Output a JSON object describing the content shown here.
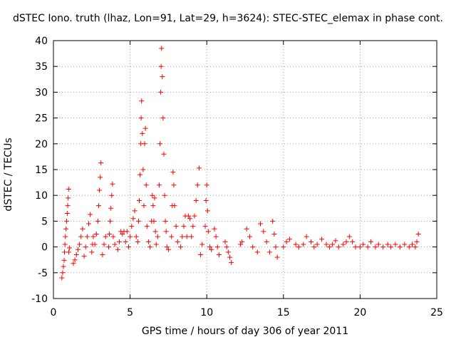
{
  "chart_data": {
    "type": "scatter",
    "title": "dSTEC Iono. truth (lhaz, Lon=91, Lat=29, h=3624): STEC-STEC_elemax in phase cont.",
    "xlabel": "GPS time / hours of day 306 of year 2011",
    "ylabel": "dSTEC  / TECUs",
    "xlim": [
      0,
      25
    ],
    "ylim": [
      -10,
      40
    ],
    "xticks": [
      0,
      5,
      10,
      15,
      20,
      25
    ],
    "yticks": [
      -10,
      -5,
      0,
      5,
      10,
      15,
      20,
      25,
      30,
      35,
      40
    ],
    "grid": true,
    "marker": "+",
    "color": "#ff0000",
    "series": [
      {
        "values": [
          {
            "x": 0.55,
            "y": -6.0
          },
          {
            "x": 0.6,
            "y": -5.0
          },
          {
            "x": 0.65,
            "y": -3.8
          },
          {
            "x": 0.7,
            "y": -2.6
          },
          {
            "x": 0.72,
            "y": -1.0
          },
          {
            "x": 0.75,
            "y": 0.5
          },
          {
            "x": 0.78,
            "y": 2.0
          },
          {
            "x": 0.82,
            "y": 3.5
          },
          {
            "x": 0.86,
            "y": 5.0
          },
          {
            "x": 0.9,
            "y": 6.5
          },
          {
            "x": 0.93,
            "y": 8.0
          },
          {
            "x": 0.96,
            "y": 9.5
          },
          {
            "x": 0.99,
            "y": 11.2
          },
          {
            "x": 1.0,
            "y": -1.0
          },
          {
            "x": 1.05,
            "y": -0.2
          },
          {
            "x": 1.3,
            "y": -3.2
          },
          {
            "x": 1.4,
            "y": -2.5
          },
          {
            "x": 1.5,
            "y": -1.5
          },
          {
            "x": 1.6,
            "y": -0.5
          },
          {
            "x": 1.7,
            "y": 0.5
          },
          {
            "x": 1.8,
            "y": 2.0
          },
          {
            "x": 1.9,
            "y": 3.5
          },
          {
            "x": 2.0,
            "y": -1.8
          },
          {
            "x": 2.1,
            "y": 0.0
          },
          {
            "x": 2.2,
            "y": 2.0
          },
          {
            "x": 2.3,
            "y": 4.5
          },
          {
            "x": 2.4,
            "y": 6.3
          },
          {
            "x": 2.5,
            "y": -1.0
          },
          {
            "x": 2.55,
            "y": 0.5
          },
          {
            "x": 2.6,
            "y": 2.0
          },
          {
            "x": 2.7,
            "y": 0.5
          },
          {
            "x": 2.8,
            "y": 2.5
          },
          {
            "x": 2.9,
            "y": 5.0
          },
          {
            "x": 2.95,
            "y": 8.0
          },
          {
            "x": 3.0,
            "y": 11.0
          },
          {
            "x": 3.05,
            "y": 13.5
          },
          {
            "x": 3.1,
            "y": 16.3
          },
          {
            "x": 3.2,
            "y": -1.5
          },
          {
            "x": 3.3,
            "y": 0.5
          },
          {
            "x": 3.4,
            "y": 2.0
          },
          {
            "x": 3.6,
            "y": 0.0
          },
          {
            "x": 3.65,
            "y": 2.5
          },
          {
            "x": 3.7,
            "y": 5.0
          },
          {
            "x": 3.75,
            "y": 7.5
          },
          {
            "x": 3.8,
            "y": 10.0
          },
          {
            "x": 3.85,
            "y": 12.2
          },
          {
            "x": 3.9,
            "y": 2.0
          },
          {
            "x": 4.0,
            "y": 0.5
          },
          {
            "x": 4.2,
            "y": -0.5
          },
          {
            "x": 4.3,
            "y": 1.0
          },
          {
            "x": 4.4,
            "y": 3.0
          },
          {
            "x": 4.5,
            "y": 2.5
          },
          {
            "x": 4.6,
            "y": 3.0
          },
          {
            "x": 4.7,
            "y": 1.0
          },
          {
            "x": 4.8,
            "y": 3.0
          },
          {
            "x": 4.9,
            "y": 0.0
          },
          {
            "x": 5.0,
            "y": 2.0
          },
          {
            "x": 5.1,
            "y": 4.0
          },
          {
            "x": 5.2,
            "y": 5.5
          },
          {
            "x": 5.3,
            "y": 7.0
          },
          {
            "x": 5.4,
            "y": 2.0
          },
          {
            "x": 5.5,
            "y": 1.0
          },
          {
            "x": 5.55,
            "y": 5.0
          },
          {
            "x": 5.6,
            "y": 9.0
          },
          {
            "x": 5.65,
            "y": 14.0
          },
          {
            "x": 5.7,
            "y": 20.0
          },
          {
            "x": 5.72,
            "y": 25.0
          },
          {
            "x": 5.75,
            "y": 28.3
          },
          {
            "x": 5.8,
            "y": 22.0
          },
          {
            "x": 5.85,
            "y": 15.0
          },
          {
            "x": 5.9,
            "y": 8.0
          },
          {
            "x": 5.95,
            "y": 20.0
          },
          {
            "x": 6.0,
            "y": 23.0
          },
          {
            "x": 6.05,
            "y": 12.0
          },
          {
            "x": 6.1,
            "y": 4.0
          },
          {
            "x": 6.2,
            "y": 1.0
          },
          {
            "x": 6.3,
            "y": 0.0
          },
          {
            "x": 6.4,
            "y": 5.0
          },
          {
            "x": 6.45,
            "y": 10.0
          },
          {
            "x": 6.5,
            "y": 8.0
          },
          {
            "x": 6.55,
            "y": 5.0
          },
          {
            "x": 6.6,
            "y": 9.5
          },
          {
            "x": 6.65,
            "y": 3.0
          },
          {
            "x": 6.7,
            "y": 0.5
          },
          {
            "x": 6.8,
            "y": 2.0
          },
          {
            "x": 6.9,
            "y": 12.0
          },
          {
            "x": 6.95,
            "y": 20.0
          },
          {
            "x": 7.0,
            "y": 30.0
          },
          {
            "x": 7.02,
            "y": 35.0
          },
          {
            "x": 7.05,
            "y": 38.5
          },
          {
            "x": 7.1,
            "y": 33.0
          },
          {
            "x": 7.15,
            "y": 25.0
          },
          {
            "x": 7.2,
            "y": 18.0
          },
          {
            "x": 7.25,
            "y": 10.0
          },
          {
            "x": 7.3,
            "y": 5.0
          },
          {
            "x": 7.35,
            "y": 3.0
          },
          {
            "x": 7.4,
            "y": 0.0
          },
          {
            "x": 7.5,
            "y": -0.5
          },
          {
            "x": 7.7,
            "y": 2.0
          },
          {
            "x": 7.75,
            "y": 8.0
          },
          {
            "x": 7.8,
            "y": 14.5
          },
          {
            "x": 7.85,
            "y": 12.0
          },
          {
            "x": 7.9,
            "y": 8.0
          },
          {
            "x": 8.0,
            "y": 4.0
          },
          {
            "x": 8.1,
            "y": 1.0
          },
          {
            "x": 8.3,
            "y": 0.0
          },
          {
            "x": 8.4,
            "y": 2.0
          },
          {
            "x": 8.5,
            "y": 4.0
          },
          {
            "x": 8.6,
            "y": 6.0
          },
          {
            "x": 8.7,
            "y": 2.0
          },
          {
            "x": 8.8,
            "y": 6.0
          },
          {
            "x": 8.9,
            "y": 5.5
          },
          {
            "x": 9.0,
            "y": 2.0
          },
          {
            "x": 9.1,
            "y": 4.0
          },
          {
            "x": 9.2,
            "y": 6.0
          },
          {
            "x": 9.3,
            "y": 9.0
          },
          {
            "x": 9.4,
            "y": 12.0
          },
          {
            "x": 9.5,
            "y": 15.3
          },
          {
            "x": 9.6,
            "y": -1.5
          },
          {
            "x": 9.7,
            "y": 0.5
          },
          {
            "x": 9.9,
            "y": 4.0
          },
          {
            "x": 9.95,
            "y": 9.0
          },
          {
            "x": 10.0,
            "y": 12.0
          },
          {
            "x": 10.05,
            "y": 7.0
          },
          {
            "x": 10.1,
            "y": 3.0
          },
          {
            "x": 10.2,
            "y": 0.0
          },
          {
            "x": 10.3,
            "y": -0.5
          },
          {
            "x": 10.5,
            "y": 3.5
          },
          {
            "x": 10.6,
            "y": 2.0
          },
          {
            "x": 10.7,
            "y": 0.0
          },
          {
            "x": 10.8,
            "y": -1.5
          },
          {
            "x": 11.2,
            "y": 1.0
          },
          {
            "x": 11.3,
            "y": 0.0
          },
          {
            "x": 11.4,
            "y": -1.0
          },
          {
            "x": 11.5,
            "y": -2.0
          },
          {
            "x": 11.6,
            "y": -3.0
          },
          {
            "x": 12.2,
            "y": 0.5
          },
          {
            "x": 12.3,
            "y": 1.0
          },
          {
            "x": 12.6,
            "y": 3.5
          },
          {
            "x": 12.8,
            "y": 2.0
          },
          {
            "x": 13.0,
            "y": 0.0
          },
          {
            "x": 13.3,
            "y": -1.0
          },
          {
            "x": 13.5,
            "y": 4.5
          },
          {
            "x": 13.7,
            "y": 3.0
          },
          {
            "x": 13.9,
            "y": 1.0
          },
          {
            "x": 14.1,
            "y": -1.0
          },
          {
            "x": 14.3,
            "y": 5.0
          },
          {
            "x": 14.4,
            "y": 2.5
          },
          {
            "x": 14.5,
            "y": 0.0
          },
          {
            "x": 14.6,
            "y": -2.0
          },
          {
            "x": 15.0,
            "y": 0.0
          },
          {
            "x": 15.2,
            "y": 1.0
          },
          {
            "x": 15.4,
            "y": 1.5
          },
          {
            "x": 15.8,
            "y": 0.5
          },
          {
            "x": 16.0,
            "y": 0.0
          },
          {
            "x": 16.3,
            "y": 0.5
          },
          {
            "x": 16.5,
            "y": 2.0
          },
          {
            "x": 16.8,
            "y": 1.0
          },
          {
            "x": 17.0,
            "y": 0.0
          },
          {
            "x": 17.2,
            "y": 0.5
          },
          {
            "x": 17.5,
            "y": 1.5
          },
          {
            "x": 17.8,
            "y": 0.5
          },
          {
            "x": 18.0,
            "y": 0.0
          },
          {
            "x": 18.2,
            "y": 0.5
          },
          {
            "x": 18.4,
            "y": 1.2
          },
          {
            "x": 18.6,
            "y": 0.0
          },
          {
            "x": 18.9,
            "y": 0.5
          },
          {
            "x": 19.1,
            "y": 1.0
          },
          {
            "x": 19.3,
            "y": 2.0
          },
          {
            "x": 19.5,
            "y": 1.0
          },
          {
            "x": 19.7,
            "y": 0.0
          },
          {
            "x": 20.0,
            "y": 0.0
          },
          {
            "x": 20.2,
            "y": 0.5
          },
          {
            "x": 20.5,
            "y": 0.0
          },
          {
            "x": 20.7,
            "y": 1.0
          },
          {
            "x": 21.0,
            "y": 0.0
          },
          {
            "x": 21.2,
            "y": 0.5
          },
          {
            "x": 21.5,
            "y": 0.0
          },
          {
            "x": 21.8,
            "y": 0.5
          },
          {
            "x": 22.0,
            "y": 0.0
          },
          {
            "x": 22.3,
            "y": 0.5
          },
          {
            "x": 22.6,
            "y": 0.0
          },
          {
            "x": 22.9,
            "y": 0.5
          },
          {
            "x": 23.2,
            "y": 0.0
          },
          {
            "x": 23.4,
            "y": 0.5
          },
          {
            "x": 23.6,
            "y": 0.0
          },
          {
            "x": 23.7,
            "y": 1.0
          },
          {
            "x": 23.8,
            "y": 2.5
          }
        ]
      }
    ]
  }
}
